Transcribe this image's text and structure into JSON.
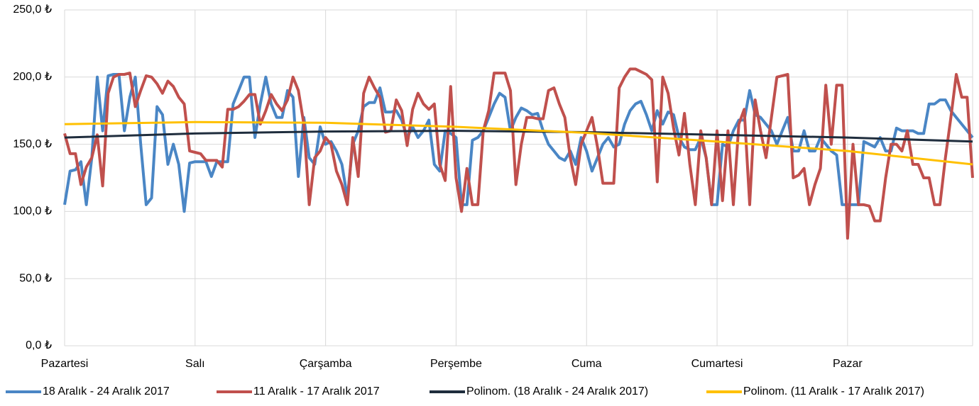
{
  "chart_data": {
    "type": "line",
    "categories": [
      "Pazartesi",
      null,
      null,
      null,
      null,
      null,
      null,
      null,
      null,
      null,
      null,
      null,
      null,
      null,
      null,
      null,
      null,
      null,
      null,
      null,
      null,
      null,
      null,
      null,
      "Salı",
      null,
      null,
      null,
      null,
      null,
      null,
      null,
      null,
      null,
      null,
      null,
      null,
      null,
      null,
      null,
      null,
      null,
      null,
      null,
      null,
      null,
      null,
      null,
      "Çarşamba",
      null,
      null,
      null,
      null,
      null,
      null,
      null,
      null,
      null,
      null,
      null,
      null,
      null,
      null,
      null,
      null,
      null,
      null,
      null,
      null,
      null,
      null,
      null,
      "Perşembe",
      null,
      null,
      null,
      null,
      null,
      null,
      null,
      null,
      null,
      null,
      null,
      null,
      null,
      null,
      null,
      null,
      null,
      null,
      null,
      null,
      null,
      null,
      null,
      "Cuma",
      null,
      null,
      null,
      null,
      null,
      null,
      null,
      null,
      null,
      null,
      null,
      null,
      null,
      null,
      null,
      null,
      null,
      null,
      null,
      null,
      null,
      null,
      null,
      "Cumartesi",
      null,
      null,
      null,
      null,
      null,
      null,
      null,
      null,
      null,
      null,
      null,
      null,
      null,
      null,
      null,
      null,
      null,
      null,
      null,
      null,
      null,
      null,
      null,
      "Pazar",
      null,
      null,
      null,
      null,
      null,
      null,
      null,
      null,
      null,
      null,
      null,
      null,
      null,
      null,
      null,
      null,
      null,
      null,
      null,
      null,
      null,
      null,
      null
    ],
    "series": [
      {
        "name": "18 Aralık - 24 Aralık 2017",
        "color": "#4a86c5",
        "values": [
          105,
          130,
          131,
          137,
          105,
          140,
          200,
          160,
          201,
          202,
          202,
          160,
          185,
          200,
          150,
          105,
          110,
          178,
          172,
          135,
          150,
          135,
          100,
          136,
          137,
          137,
          137,
          126,
          137,
          137,
          137,
          180,
          190,
          200,
          200,
          155,
          180,
          200,
          180,
          170,
          170,
          190,
          185,
          126,
          170,
          140,
          135,
          163,
          150,
          152,
          145,
          135,
          110,
          150,
          160,
          178,
          181,
          181,
          192,
          174,
          174,
          175,
          168,
          155,
          163,
          155,
          160,
          168,
          135,
          130,
          160,
          158,
          155,
          105,
          105,
          153,
          155,
          160,
          170,
          180,
          188,
          185,
          160,
          170,
          177,
          175,
          172,
          173,
          160,
          150,
          145,
          140,
          138,
          145,
          135,
          155,
          145,
          130,
          140,
          150,
          155,
          148,
          150,
          165,
          175,
          180,
          182,
          172,
          160,
          175,
          165,
          174,
          172,
          155,
          148,
          146,
          146,
          155,
          140,
          105,
          105,
          150,
          148,
          160,
          168,
          168,
          190,
          172,
          170,
          165,
          160,
          150,
          160,
          170,
          145,
          145,
          160,
          145,
          145,
          155,
          150,
          145,
          142,
          105,
          105,
          105,
          105,
          152,
          150,
          148,
          155,
          145,
          145,
          162,
          160,
          160,
          160,
          158,
          158,
          180,
          180,
          183,
          183,
          175,
          170,
          165,
          160,
          155
        ]
      },
      {
        "name": "11 Aralık - 17 Aralık 2017",
        "color": "#c0504d",
        "values": [
          158,
          143,
          143,
          120,
          133,
          140,
          157,
          119,
          188,
          200,
          202,
          202,
          203,
          178,
          190,
          201,
          200,
          195,
          188,
          197,
          193,
          185,
          180,
          145,
          144,
          143,
          138,
          138,
          138,
          133,
          176,
          176,
          178,
          182,
          187,
          187,
          165,
          175,
          187,
          180,
          175,
          183,
          200,
          190,
          165,
          105,
          140,
          145,
          155,
          150,
          130,
          120,
          105,
          155,
          126,
          188,
          200,
          192,
          185,
          159,
          160,
          183,
          175,
          149,
          176,
          188,
          180,
          176,
          180,
          135,
          123,
          193,
          125,
          100,
          132,
          105,
          105,
          160,
          175,
          203,
          203,
          203,
          190,
          120,
          150,
          170,
          170,
          169,
          169,
          190,
          192,
          180,
          170,
          140,
          120,
          150,
          160,
          170,
          148,
          121,
          121,
          121,
          192,
          200,
          206,
          206,
          204,
          202,
          198,
          122,
          200,
          188,
          162,
          142,
          173,
          135,
          105,
          160,
          140,
          105,
          160,
          108,
          160,
          105,
          165,
          176,
          105,
          183,
          160,
          140,
          170,
          200,
          201,
          202,
          125,
          127,
          132,
          105,
          120,
          132,
          194,
          150,
          194,
          194,
          80,
          150,
          105,
          105,
          104,
          93,
          93,
          125,
          150,
          150,
          145,
          160,
          135,
          135,
          125,
          125,
          105,
          105,
          140,
          170,
          202,
          185,
          185,
          125
        ]
      },
      {
        "name": "Polinom. (18 Aralık - 24 Aralık 2017)",
        "color": "#1f2d3d",
        "x": [
          0,
          24,
          48,
          72,
          96,
          120,
          144,
          167
        ],
        "values": [
          155,
          158,
          159.5,
          160,
          159,
          157,
          155,
          152
        ]
      },
      {
        "name": "Polinom. (11 Aralık - 17 Aralık 2017)",
        "color": "#ffc000",
        "x": [
          0,
          24,
          48,
          72,
          96,
          120,
          144,
          167
        ],
        "values": [
          165,
          166.5,
          166,
          163,
          158.5,
          152,
          145,
          135
        ]
      }
    ],
    "ylim": [
      0,
      250
    ],
    "yticks": [
      {
        "value": 0,
        "label": "0,0 ₺"
      },
      {
        "value": 50,
        "label": "50,0 ₺"
      },
      {
        "value": 100,
        "label": "100,0 ₺"
      },
      {
        "value": 150,
        "label": "150,0 ₺"
      },
      {
        "value": 200,
        "label": "200,0 ₺"
      },
      {
        "value": 250,
        "label": "250,0 ₺"
      }
    ],
    "grid": true,
    "legend": "bottom"
  }
}
